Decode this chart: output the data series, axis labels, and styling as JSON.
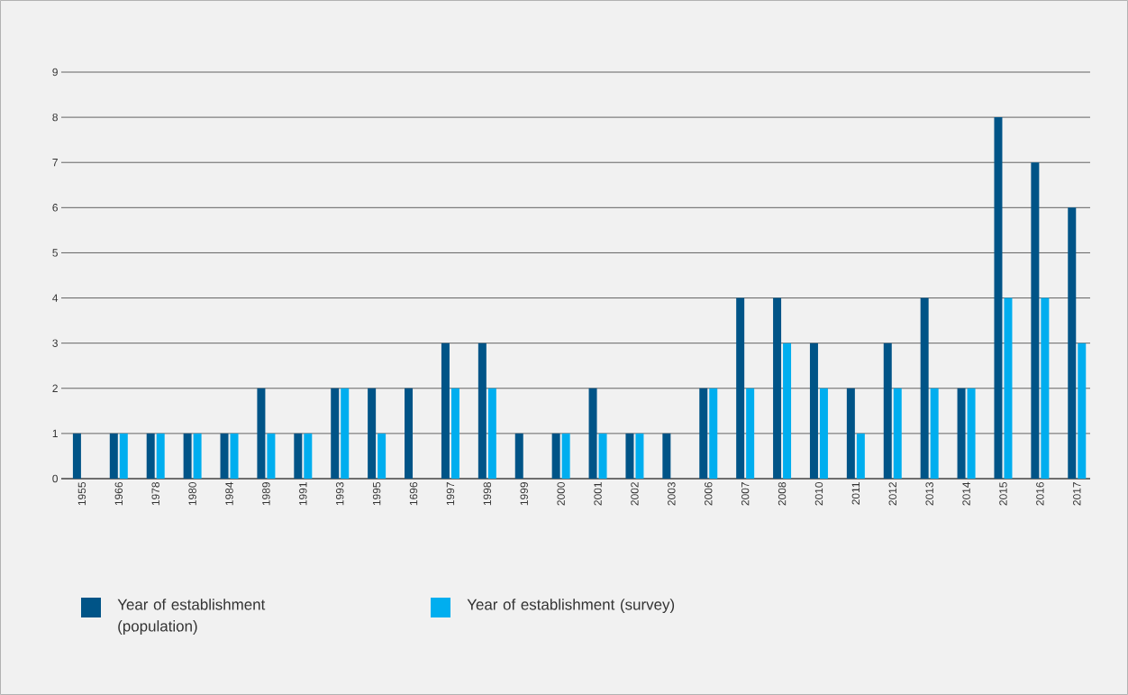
{
  "chart_data": {
    "type": "bar",
    "categories": [
      "1955",
      "1966",
      "1978",
      "1980",
      "1984",
      "1989",
      "1991",
      "1993",
      "1995",
      "1696",
      "1997",
      "1998",
      "1999",
      "2000",
      "2001",
      "2002",
      "2003",
      "2006",
      "2007",
      "2008",
      "2010",
      "2011",
      "2012",
      "2013",
      "2014",
      "2015",
      "2016",
      "2017"
    ],
    "series": [
      {
        "name": "Year of establishment (population)",
        "color": "#005487",
        "values": [
          1,
          1,
          1,
          1,
          1,
          2,
          1,
          2,
          2,
          2,
          3,
          3,
          1,
          1,
          2,
          1,
          1,
          2,
          4,
          4,
          3,
          2,
          3,
          4,
          2,
          8,
          7,
          6
        ]
      },
      {
        "name": "Year of establishment (survey)",
        "color": "#00aeef",
        "values": [
          0,
          1,
          1,
          1,
          1,
          1,
          1,
          2,
          1,
          0,
          2,
          2,
          0,
          1,
          1,
          1,
          0,
          2,
          2,
          3,
          2,
          1,
          2,
          2,
          2,
          4,
          4,
          3
        ]
      }
    ],
    "ylim": [
      0,
      9
    ],
    "yticks": [
      0,
      1,
      2,
      3,
      4,
      5,
      6,
      7,
      8,
      9
    ],
    "grid": "y",
    "legend": "bottom left"
  }
}
